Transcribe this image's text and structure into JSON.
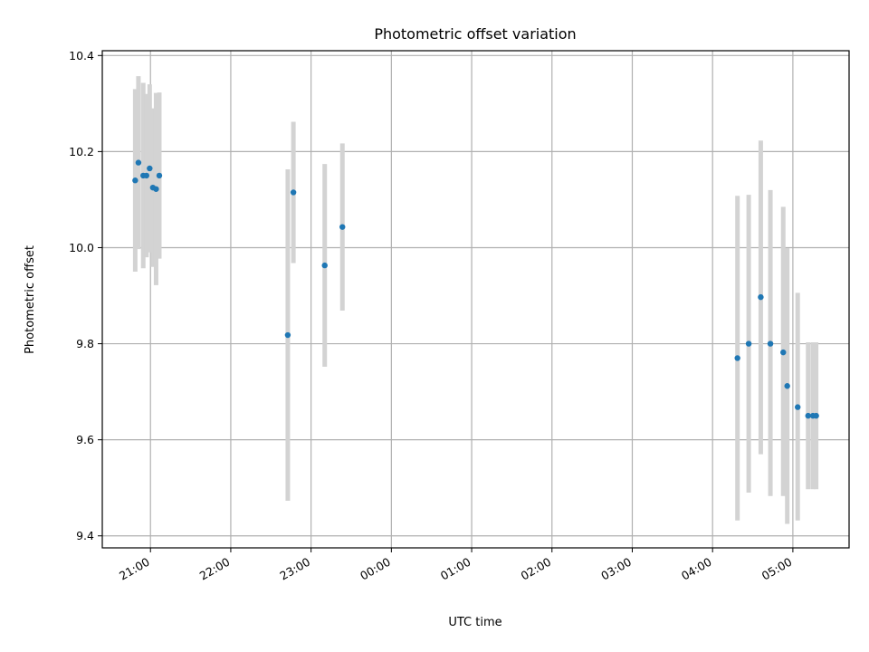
{
  "chart_data": {
    "type": "scatter",
    "title": "Photometric offset variation",
    "xlabel": "UTC time",
    "ylabel": "Photometric offset",
    "x_unit": "hours",
    "xlim": [
      -0.6,
      8.7
    ],
    "ylim": [
      9.375,
      10.41
    ],
    "x_ticks": [
      {
        "value": 0,
        "label": "21:00"
      },
      {
        "value": 1,
        "label": "22:00"
      },
      {
        "value": 2,
        "label": "23:00"
      },
      {
        "value": 3,
        "label": "00:00"
      },
      {
        "value": 4,
        "label": "01:00"
      },
      {
        "value": 5,
        "label": "02:00"
      },
      {
        "value": 6,
        "label": "03:00"
      },
      {
        "value": 7,
        "label": "04:00"
      },
      {
        "value": 8,
        "label": "05:00"
      }
    ],
    "y_ticks": [
      {
        "value": 9.4,
        "label": "9.4"
      },
      {
        "value": 9.6,
        "label": "9.6"
      },
      {
        "value": 9.8,
        "label": "9.8"
      },
      {
        "value": 10.0,
        "label": "10.0"
      },
      {
        "value": 10.2,
        "label": "10.2"
      },
      {
        "value": 10.4,
        "label": "10.4"
      }
    ],
    "grid": true,
    "marker_color": "#1f77b4",
    "errorbar_color": "#d3d3d3",
    "points": [
      {
        "x": -0.19,
        "y": 10.14,
        "lo": 9.95,
        "hi": 10.33
      },
      {
        "x": -0.15,
        "y": 10.177,
        "lo": 9.997,
        "hi": 10.357
      },
      {
        "x": -0.09,
        "y": 10.15,
        "lo": 9.957,
        "hi": 10.343
      },
      {
        "x": -0.05,
        "y": 10.15,
        "lo": 9.98,
        "hi": 10.32
      },
      {
        "x": -0.01,
        "y": 10.165,
        "lo": 9.99,
        "hi": 10.34
      },
      {
        "x": 0.03,
        "y": 10.125,
        "lo": 9.96,
        "hi": 10.29
      },
      {
        "x": 0.07,
        "y": 10.122,
        "lo": 9.922,
        "hi": 10.322
      },
      {
        "x": 0.11,
        "y": 10.15,
        "lo": 9.977,
        "hi": 10.323
      },
      {
        "x": 1.71,
        "y": 9.818,
        "lo": 9.473,
        "hi": 10.163
      },
      {
        "x": 1.78,
        "y": 10.115,
        "lo": 9.968,
        "hi": 10.262
      },
      {
        "x": 2.17,
        "y": 9.963,
        "lo": 9.752,
        "hi": 10.174
      },
      {
        "x": 2.39,
        "y": 10.043,
        "lo": 9.869,
        "hi": 10.217
      },
      {
        "x": 7.31,
        "y": 9.77,
        "lo": 9.432,
        "hi": 10.108
      },
      {
        "x": 7.45,
        "y": 9.8,
        "lo": 9.49,
        "hi": 10.11
      },
      {
        "x": 7.6,
        "y": 9.897,
        "lo": 9.57,
        "hi": 10.223
      },
      {
        "x": 7.72,
        "y": 9.8,
        "lo": 9.483,
        "hi": 10.12
      },
      {
        "x": 7.88,
        "y": 9.782,
        "lo": 9.483,
        "hi": 10.085
      },
      {
        "x": 7.93,
        "y": 9.712,
        "lo": 9.425,
        "hi": 9.999
      },
      {
        "x": 8.06,
        "y": 9.668,
        "lo": 9.432,
        "hi": 9.906
      },
      {
        "x": 8.19,
        "y": 9.65,
        "lo": 9.497,
        "hi": 9.803
      },
      {
        "x": 8.25,
        "y": 9.65,
        "lo": 9.497,
        "hi": 9.803
      },
      {
        "x": 8.29,
        "y": 9.65,
        "lo": 9.497,
        "hi": 9.803
      }
    ]
  }
}
